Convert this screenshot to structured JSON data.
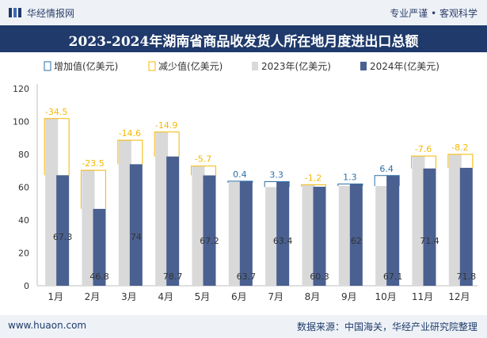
{
  "header": {
    "brand": "华经情报网",
    "tagline": "专业严谨 • 客观科学",
    "title": "2023-2024年湖南省商品收发货人所在地月度进出口总额"
  },
  "footer": {
    "site": "www.huaon.com",
    "source": "数据来源：中国海关，华经产业研究院整理"
  },
  "colors": {
    "bar_2023": "#d9d9d9",
    "bar_2024": "#4a6090",
    "increase": "#2a6fa8",
    "decrease": "#f5b800",
    "title_bg": "#1f3a6b"
  },
  "chart_data": {
    "type": "bar",
    "title": "2023-2024年湖南省商品收发货人所在地月度进出口总额",
    "categories": [
      "1月",
      "2月",
      "3月",
      "4月",
      "5月",
      "6月",
      "7月",
      "8月",
      "9月",
      "10月",
      "11月",
      "12月"
    ],
    "series": [
      {
        "name": "2023年(亿美元)",
        "values": [
          101.8,
          70.3,
          88.6,
          93.6,
          72.9,
          63.3,
          60.1,
          61.5,
          60.7,
          60.7,
          79.0,
          80.0
        ]
      },
      {
        "name": "2024年(亿美元)",
        "values": [
          67.3,
          46.8,
          74,
          78.7,
          67.2,
          63.7,
          63.4,
          60.3,
          62,
          67.1,
          71.4,
          71.8
        ]
      }
    ],
    "change": {
      "labels": [
        "-34.5",
        "-23.5",
        "-14.6",
        "-14.9",
        "-5.7",
        "0.4",
        "3.3",
        "-1.2",
        "1.3",
        "6.4",
        "-7.6",
        "-8.2"
      ],
      "values": [
        -34.5,
        -23.5,
        -14.6,
        -14.9,
        -5.7,
        0.4,
        3.3,
        -1.2,
        1.3,
        6.4,
        -7.6,
        -8.2
      ]
    },
    "value_labels_2024": [
      "67.3",
      "46.8",
      "74",
      "78.7",
      "67.2",
      "63.7",
      "63.4",
      "60.3",
      "62",
      "67.1",
      "71.4",
      "71.8"
    ],
    "legend": [
      "增加值(亿美元)",
      "减少值(亿美元)",
      "2023年(亿美元)",
      "2024年(亿美元)"
    ],
    "legend_position": "top",
    "ylim": [
      0,
      120
    ],
    "yticks": [
      "0",
      "20",
      "40",
      "60",
      "80",
      "100",
      "120"
    ],
    "grid": false,
    "xlabel": "",
    "ylabel": ""
  }
}
